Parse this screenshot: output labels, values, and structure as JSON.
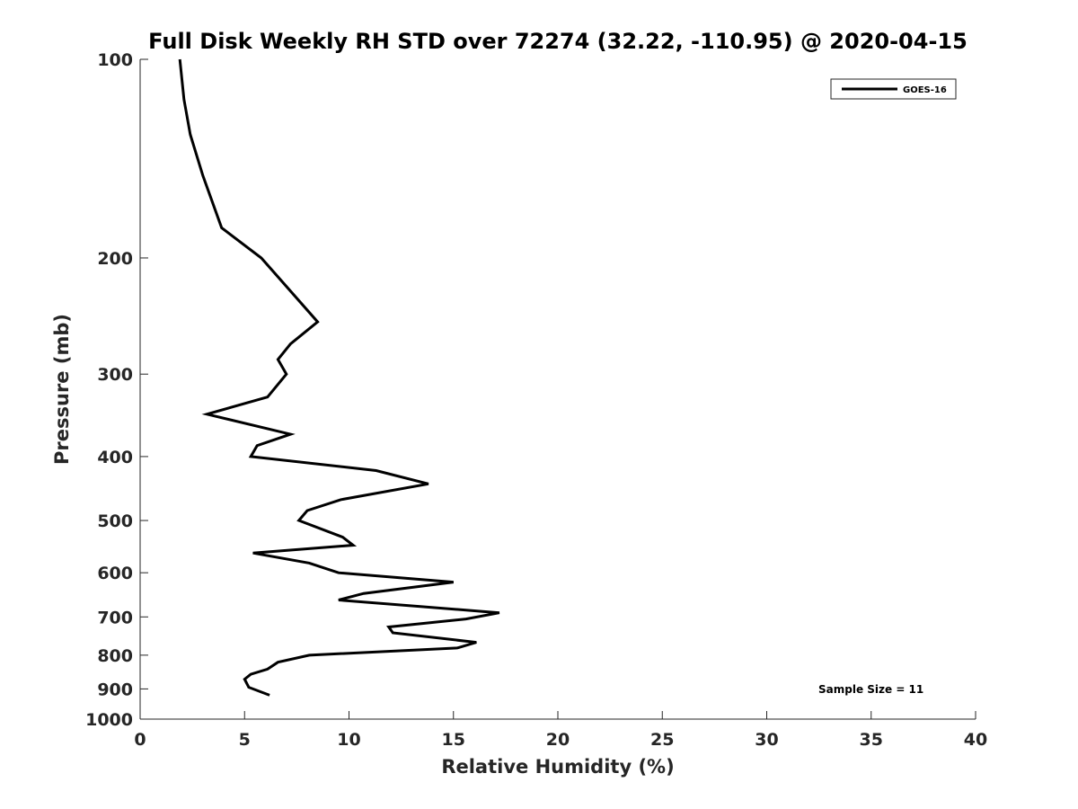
{
  "chart_data": {
    "type": "line",
    "title": "Full Disk Weekly RH STD over 72274 (32.22, -110.95) @ 2020-04-15",
    "xlabel": "Relative Humidity (%)",
    "ylabel": "Pressure (mb)",
    "xlim": [
      0,
      40
    ],
    "ylim": [
      100,
      1000
    ],
    "yscale": "log",
    "y_reversed": true,
    "grid": false,
    "xticks": [
      0,
      5,
      10,
      15,
      20,
      25,
      30,
      35,
      40
    ],
    "yticks": [
      100,
      200,
      300,
      400,
      500,
      600,
      700,
      800,
      900,
      1000
    ],
    "legend": {
      "placement": "top-right"
    },
    "annotation": "Sample Size = 11",
    "series": [
      {
        "name": "GOES-16",
        "color": "#000000",
        "points": [
          {
            "x": 6.2,
            "y": 920
          },
          {
            "x": 5.2,
            "y": 895
          },
          {
            "x": 5.0,
            "y": 870
          },
          {
            "x": 5.3,
            "y": 855
          },
          {
            "x": 6.1,
            "y": 840
          },
          {
            "x": 6.6,
            "y": 820
          },
          {
            "x": 8.1,
            "y": 800
          },
          {
            "x": 15.2,
            "y": 780
          },
          {
            "x": 16.1,
            "y": 765
          },
          {
            "x": 12.1,
            "y": 740
          },
          {
            "x": 11.9,
            "y": 725
          },
          {
            "x": 15.6,
            "y": 705
          },
          {
            "x": 17.2,
            "y": 690
          },
          {
            "x": 9.5,
            "y": 660
          },
          {
            "x": 10.7,
            "y": 645
          },
          {
            "x": 15.0,
            "y": 620
          },
          {
            "x": 9.5,
            "y": 600
          },
          {
            "x": 8.1,
            "y": 580
          },
          {
            "x": 5.4,
            "y": 560
          },
          {
            "x": 10.2,
            "y": 545
          },
          {
            "x": 9.7,
            "y": 530
          },
          {
            "x": 7.6,
            "y": 500
          },
          {
            "x": 8.0,
            "y": 483
          },
          {
            "x": 9.6,
            "y": 465
          },
          {
            "x": 13.8,
            "y": 440
          },
          {
            "x": 11.3,
            "y": 420
          },
          {
            "x": 5.3,
            "y": 400
          },
          {
            "x": 5.6,
            "y": 385
          },
          {
            "x": 7.2,
            "y": 370
          },
          {
            "x": 3.2,
            "y": 345
          },
          {
            "x": 6.1,
            "y": 325
          },
          {
            "x": 7.0,
            "y": 300
          },
          {
            "x": 6.6,
            "y": 285
          },
          {
            "x": 7.2,
            "y": 270
          },
          {
            "x": 8.5,
            "y": 250
          },
          {
            "x": 5.8,
            "y": 200
          },
          {
            "x": 3.9,
            "y": 180
          },
          {
            "x": 3.0,
            "y": 150
          },
          {
            "x": 2.4,
            "y": 130
          },
          {
            "x": 2.1,
            "y": 115
          },
          {
            "x": 1.9,
            "y": 100
          }
        ]
      }
    ]
  }
}
